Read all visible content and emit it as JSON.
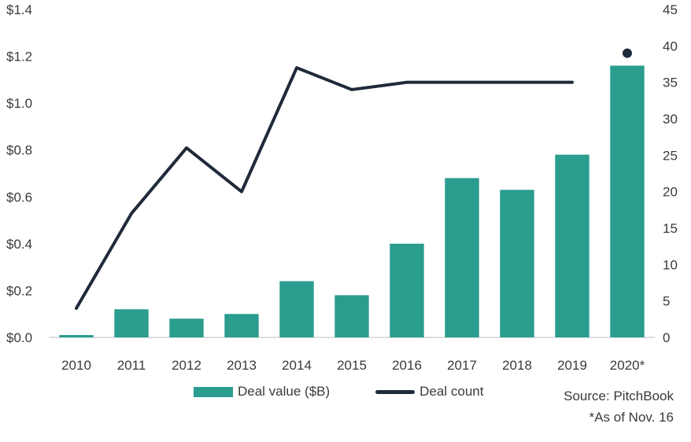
{
  "chart_data": {
    "type": "bar",
    "categories": [
      "2010",
      "2011",
      "2012",
      "2013",
      "2014",
      "2015",
      "2016",
      "2017",
      "2018",
      "2019",
      "2020*"
    ],
    "series": [
      {
        "name": "Deal value ($B)",
        "type": "bar",
        "axis": "left",
        "values": [
          0.01,
          0.12,
          0.08,
          0.1,
          0.24,
          0.18,
          0.4,
          0.68,
          0.63,
          0.78,
          1.16
        ]
      },
      {
        "name": "Deal count",
        "type": "line",
        "axis": "right",
        "values": [
          4,
          17,
          26,
          20,
          37,
          34,
          35,
          35,
          35,
          35,
          39
        ],
        "last_point_separate": true
      }
    ],
    "left_axis": {
      "ylim": [
        0,
        1.4
      ],
      "ticks": [
        0,
        0.2,
        0.4,
        0.6,
        0.8,
        1.0,
        1.2,
        1.4
      ],
      "tick_labels": [
        "$0.0",
        "$0.2",
        "$0.4",
        "$0.6",
        "$0.8",
        "$1.0",
        "$1.2",
        "$1.4"
      ]
    },
    "right_axis": {
      "ylim": [
        0,
        45
      ],
      "ticks": [
        0,
        5,
        10,
        15,
        20,
        25,
        30,
        35,
        40,
        45
      ],
      "tick_labels": [
        "0",
        "5",
        "10",
        "15",
        "20",
        "25",
        "30",
        "35",
        "40",
        "45"
      ]
    },
    "grid": false,
    "legend_position": "bottom",
    "colors": {
      "bar": "#2a9d8f",
      "line": "#1f2a3a"
    }
  },
  "notes": {
    "source": "Source: PitchBook",
    "footnote": "*As of Nov. 16"
  }
}
